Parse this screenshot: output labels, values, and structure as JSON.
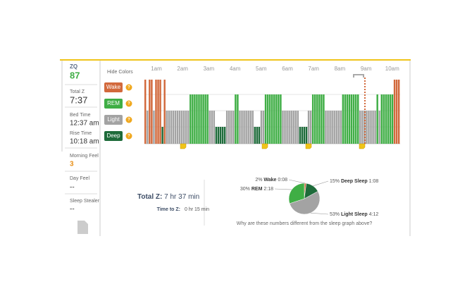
{
  "sidebar": {
    "zq": {
      "label": "ZQ",
      "value": "87"
    },
    "total_z": {
      "label": "Total Z",
      "value": "7:37"
    },
    "bed_time": {
      "label": "Bed Time",
      "value": "12:37 am"
    },
    "rise_time": {
      "label": "Rise Time",
      "value": "10:18 am"
    },
    "morning_feel": {
      "label": "Morning Feel",
      "value": "3"
    },
    "day_feel": {
      "label": "Day Feel",
      "value": "--"
    },
    "sleep_stealer": {
      "label": "Sleep Stealer",
      "value": "--"
    }
  },
  "legend": {
    "toggle": "Hide Colors",
    "help": "?",
    "items": [
      {
        "name": "Wake",
        "color": "#d2693c"
      },
      {
        "name": "REM",
        "color": "#3fae45"
      },
      {
        "name": "Light",
        "color": "#a3a3a3"
      },
      {
        "name": "Deep",
        "color": "#1e6b3a"
      }
    ]
  },
  "hypnogram": {
    "times": [
      "1am",
      "2am",
      "3am",
      "4am",
      "5am",
      "6am",
      "7am",
      "8am",
      "9am",
      "10am"
    ],
    "stages": [
      4,
      2,
      4,
      4,
      2,
      4,
      4,
      4,
      1,
      4,
      2,
      2,
      2,
      2,
      2,
      2,
      2,
      2,
      2,
      2,
      2,
      3,
      3,
      3,
      3,
      3,
      3,
      3,
      3,
      3,
      2,
      2,
      2,
      1,
      1,
      1,
      1,
      1,
      2,
      2,
      2,
      2,
      3,
      3,
      2,
      2,
      2,
      2,
      2,
      2,
      2,
      1,
      1,
      1,
      2,
      2,
      3,
      3,
      3,
      3,
      3,
      3,
      3,
      3,
      2,
      2,
      2,
      2,
      2,
      2,
      2,
      2,
      1,
      1,
      1,
      1,
      2,
      2,
      3,
      3,
      3,
      3,
      3,
      3,
      2,
      2,
      2,
      2,
      2,
      2,
      2,
      2,
      3,
      3,
      3,
      3,
      3,
      3,
      3,
      3,
      2,
      2,
      2,
      2,
      2,
      2,
      2,
      2,
      3,
      2,
      3,
      3,
      3,
      3,
      3,
      3,
      4,
      4,
      4
    ]
  },
  "summary": {
    "total_z": {
      "label": "Total Z:",
      "value": "7 hr 37 min"
    },
    "time_to_z": {
      "label": "Time to Z:",
      "value": "0 hr 15 min"
    }
  },
  "pie": {
    "slices": [
      {
        "name": "Wake",
        "value": 2,
        "value_label": "2%",
        "duration": "0:08",
        "color": "#d2693c"
      },
      {
        "name": "Deep Sleep",
        "value": 15,
        "value_label": "15%",
        "duration": "1:08",
        "color": "#1e6b3a"
      },
      {
        "name": "Light Sleep",
        "value": 53,
        "value_label": "53%",
        "duration": "4:12",
        "color": "#a3a3a3"
      },
      {
        "name": "REM",
        "value": 30,
        "value_label": "30%",
        "duration": "2:18",
        "color": "#3fae45"
      }
    ],
    "note": "Why are these numbers different from the sleep graph above?"
  }
}
